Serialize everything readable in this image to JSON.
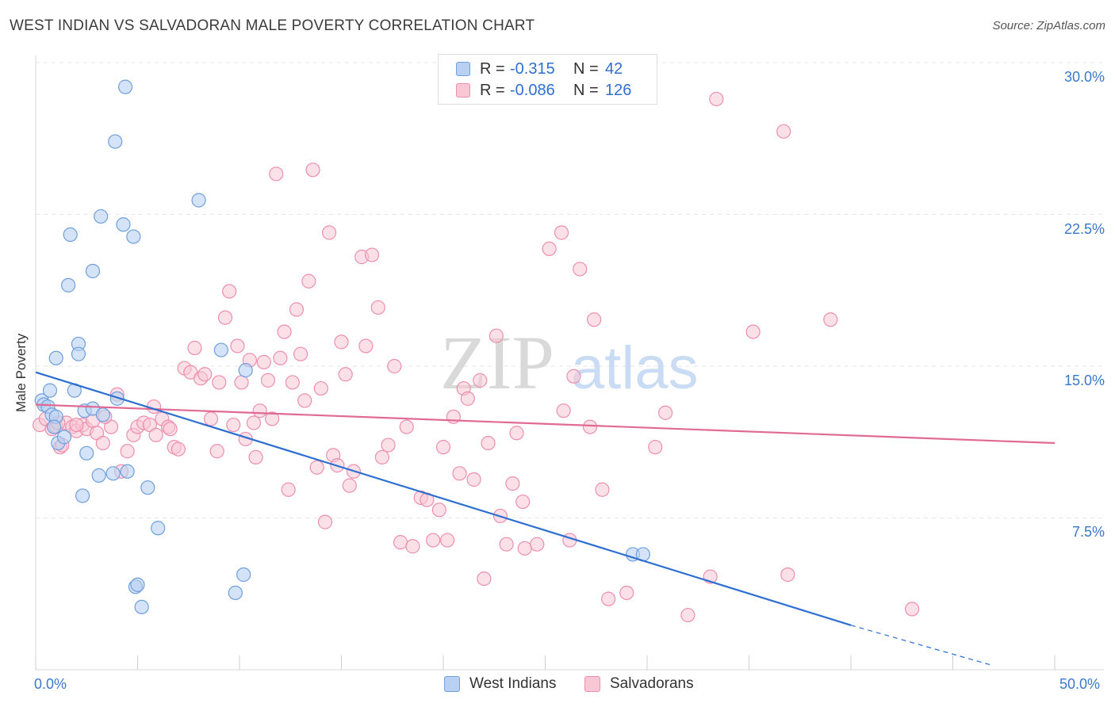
{
  "title": "WEST INDIAN VS SALVADORAN MALE POVERTY CORRELATION CHART",
  "source": "Source: ZipAtlas.com",
  "watermark": {
    "zip": "ZIP",
    "atlas": "atlas"
  },
  "legend_top": [
    {
      "r_label": "R =",
      "r_value": "-0.315",
      "n_label": "N =",
      "n_value": "42"
    },
    {
      "r_label": "R =",
      "r_value": "-0.086",
      "n_label": "N =",
      "n_value": "126"
    }
  ],
  "legend_bottom": [
    "West Indians",
    "Salvadorans"
  ],
  "y_axis_label": "Male Poverty",
  "y_tick_labels": [
    "30.0%",
    "22.5%",
    "15.0%",
    "7.5%"
  ],
  "x_tick_labels": [
    "0.0%",
    "50.0%"
  ],
  "colors": {
    "blue_fill": "#b8d0f2",
    "blue_stroke": "#6f9fdc",
    "blue_line": "#2d6fd1",
    "pink_fill": "#f9c6d6",
    "pink_stroke": "#ec8fae",
    "pink_line": "#e06a93",
    "grid": "#e6e6e6",
    "axis_text": "#3a78cc"
  },
  "chart_data": {
    "type": "scatter",
    "x_range": [
      0,
      50
    ],
    "y_range": [
      0,
      31.5
    ],
    "y_ticks": [
      7.5,
      15.0,
      22.5,
      30.0
    ],
    "xlabel": "",
    "ylabel": "Male Poverty",
    "grid": "horizontal dashed",
    "legend_position": "top-center",
    "series": [
      {
        "name": "West Indians",
        "r": -0.315,
        "n": 42,
        "trend": {
          "x0": 0,
          "y0": 14.7,
          "x1": 40,
          "y1": 2.2,
          "dashed_to": [
            47,
            0.2
          ]
        },
        "points": [
          [
            0.3,
            13.3
          ],
          [
            0.4,
            13.1
          ],
          [
            0.6,
            13.0
          ],
          [
            0.8,
            12.6
          ],
          [
            1.0,
            12.5
          ],
          [
            0.7,
            13.8
          ],
          [
            1.9,
            13.8
          ],
          [
            0.9,
            12.0
          ],
          [
            1.1,
            11.2
          ],
          [
            1.4,
            11.5
          ],
          [
            2.4,
            12.8
          ],
          [
            2.8,
            12.9
          ],
          [
            3.3,
            12.6
          ],
          [
            4.0,
            13.4
          ],
          [
            2.5,
            10.7
          ],
          [
            3.1,
            9.6
          ],
          [
            3.8,
            9.7
          ],
          [
            4.5,
            9.8
          ],
          [
            2.3,
            8.6
          ],
          [
            5.5,
            9.0
          ],
          [
            6.0,
            7.0
          ],
          [
            1.0,
            15.4
          ],
          [
            2.1,
            16.1
          ],
          [
            2.1,
            15.6
          ],
          [
            1.6,
            19.0
          ],
          [
            2.8,
            19.7
          ],
          [
            1.7,
            21.5
          ],
          [
            3.2,
            22.4
          ],
          [
            4.3,
            22.0
          ],
          [
            4.8,
            21.4
          ],
          [
            3.9,
            26.1
          ],
          [
            4.4,
            28.8
          ],
          [
            8.0,
            23.2
          ],
          [
            9.1,
            15.8
          ],
          [
            10.3,
            14.8
          ],
          [
            10.2,
            4.7
          ],
          [
            9.8,
            3.8
          ],
          [
            4.9,
            4.1
          ],
          [
            5.0,
            4.2
          ],
          [
            5.2,
            3.1
          ],
          [
            29.3,
            5.7
          ],
          [
            29.8,
            5.7
          ]
        ]
      },
      {
        "name": "Salvadorans",
        "r": -0.086,
        "n": 126,
        "trend": {
          "x0": 0,
          "y0": 13.1,
          "x1": 50,
          "y1": 11.2
        },
        "points": [
          [
            0.2,
            12.1
          ],
          [
            0.5,
            12.4
          ],
          [
            0.8,
            11.9
          ],
          [
            1.0,
            12.0
          ],
          [
            1.2,
            11.0
          ],
          [
            1.3,
            11.1
          ],
          [
            1.5,
            12.2
          ],
          [
            1.8,
            12.0
          ],
          [
            2.0,
            11.8
          ],
          [
            2.3,
            12.1
          ],
          [
            2.5,
            11.9
          ],
          [
            2.8,
            12.3
          ],
          [
            3.0,
            11.7
          ],
          [
            3.3,
            11.2
          ],
          [
            3.7,
            12.0
          ],
          [
            4.0,
            13.6
          ],
          [
            4.2,
            9.8
          ],
          [
            4.5,
            10.8
          ],
          [
            4.8,
            11.6
          ],
          [
            5.0,
            12.0
          ],
          [
            5.3,
            12.2
          ],
          [
            5.6,
            12.1
          ],
          [
            5.9,
            11.6
          ],
          [
            6.2,
            12.4
          ],
          [
            6.5,
            12.0
          ],
          [
            6.8,
            11.0
          ],
          [
            7.0,
            10.9
          ],
          [
            7.3,
            14.9
          ],
          [
            7.6,
            14.7
          ],
          [
            7.8,
            15.9
          ],
          [
            8.1,
            14.4
          ],
          [
            8.3,
            14.6
          ],
          [
            8.6,
            12.4
          ],
          [
            8.9,
            10.8
          ],
          [
            9.0,
            14.2
          ],
          [
            9.3,
            17.4
          ],
          [
            9.5,
            18.7
          ],
          [
            9.7,
            12.1
          ],
          [
            9.9,
            16.0
          ],
          [
            10.1,
            14.2
          ],
          [
            10.3,
            11.4
          ],
          [
            10.5,
            15.3
          ],
          [
            10.7,
            12.2
          ],
          [
            10.8,
            10.5
          ],
          [
            11.0,
            12.8
          ],
          [
            11.2,
            15.2
          ],
          [
            11.4,
            14.3
          ],
          [
            11.6,
            12.4
          ],
          [
            11.8,
            24.5
          ],
          [
            12.0,
            15.4
          ],
          [
            12.2,
            16.7
          ],
          [
            12.4,
            8.9
          ],
          [
            12.6,
            14.2
          ],
          [
            12.8,
            17.8
          ],
          [
            13.0,
            15.6
          ],
          [
            13.2,
            13.3
          ],
          [
            13.4,
            19.2
          ],
          [
            13.6,
            24.7
          ],
          [
            13.8,
            10.0
          ],
          [
            14.0,
            13.9
          ],
          [
            14.2,
            7.3
          ],
          [
            14.4,
            21.6
          ],
          [
            14.6,
            10.6
          ],
          [
            14.8,
            10.1
          ],
          [
            15.0,
            16.2
          ],
          [
            15.2,
            14.6
          ],
          [
            15.4,
            9.1
          ],
          [
            15.6,
            9.8
          ],
          [
            16.0,
            20.4
          ],
          [
            16.2,
            16.0
          ],
          [
            16.5,
            20.5
          ],
          [
            16.8,
            17.9
          ],
          [
            17.0,
            10.5
          ],
          [
            17.3,
            11.1
          ],
          [
            17.6,
            15.0
          ],
          [
            17.9,
            6.3
          ],
          [
            18.2,
            12.0
          ],
          [
            18.5,
            6.1
          ],
          [
            18.9,
            8.5
          ],
          [
            19.2,
            8.4
          ],
          [
            19.5,
            6.4
          ],
          [
            19.8,
            7.9
          ],
          [
            20.0,
            11.0
          ],
          [
            20.2,
            6.4
          ],
          [
            20.5,
            12.5
          ],
          [
            20.8,
            9.7
          ],
          [
            21.0,
            13.9
          ],
          [
            21.2,
            13.4
          ],
          [
            21.5,
            9.4
          ],
          [
            21.8,
            14.3
          ],
          [
            22.0,
            4.5
          ],
          [
            22.2,
            11.2
          ],
          [
            22.6,
            16.5
          ],
          [
            22.8,
            7.6
          ],
          [
            23.1,
            6.2
          ],
          [
            23.4,
            9.2
          ],
          [
            23.6,
            11.7
          ],
          [
            23.9,
            8.3
          ],
          [
            24.0,
            6.0
          ],
          [
            24.6,
            6.2
          ],
          [
            25.2,
            20.8
          ],
          [
            25.8,
            21.6
          ],
          [
            25.9,
            12.8
          ],
          [
            26.2,
            6.4
          ],
          [
            26.4,
            14.5
          ],
          [
            26.7,
            19.8
          ],
          [
            27.2,
            12.0
          ],
          [
            27.4,
            17.3
          ],
          [
            27.8,
            8.9
          ],
          [
            28.1,
            3.5
          ],
          [
            29.0,
            3.8
          ],
          [
            30.4,
            11.0
          ],
          [
            30.9,
            12.7
          ],
          [
            32.0,
            2.7
          ],
          [
            33.1,
            4.6
          ],
          [
            33.4,
            28.2
          ],
          [
            35.2,
            16.7
          ],
          [
            36.7,
            26.6
          ],
          [
            36.9,
            4.7
          ],
          [
            39.0,
            17.3
          ],
          [
            43.0,
            3.0
          ],
          [
            3.4,
            12.5
          ],
          [
            5.8,
            13.0
          ],
          [
            2.0,
            12.1
          ],
          [
            1.1,
            12.2
          ],
          [
            6.6,
            11.9
          ]
        ]
      }
    ]
  }
}
